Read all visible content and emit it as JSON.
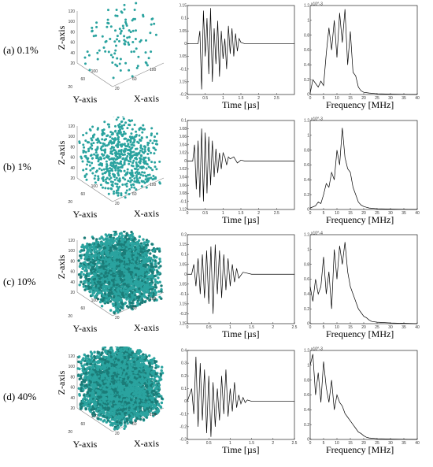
{
  "rows": [
    {
      "label": "(a) 0.1%",
      "density": 0.1
    },
    {
      "label": "(b) 1%",
      "density": 1
    },
    {
      "label": "(c) 10%",
      "density": 10
    },
    {
      "label": "(d) 40%",
      "density": 40
    }
  ],
  "cube_axes": {
    "x": "X-axis",
    "y": "Y-axis",
    "z": "Z-axis",
    "ticks": [
      "20",
      "40",
      "60",
      "80",
      "100",
      "120"
    ]
  },
  "colors": {
    "particle": "#2aa39f",
    "particle_dark": "#1b7c78",
    "line": "#000000"
  },
  "chart_data": [
    {
      "type": "line",
      "row": "(a) 0.1%",
      "xlabel": "Time [µs]",
      "xlim": [
        0,
        3
      ],
      "ylim": [
        -0.2,
        0.15
      ],
      "xticks": [
        "0",
        "0.5",
        "1",
        "1.5",
        "2",
        "2.5"
      ],
      "yticks": [
        "0.15",
        "0.1",
        "0.05",
        "0",
        "-0.05",
        "-0.1",
        "-0.15",
        "-0.2"
      ],
      "x": [
        0,
        0.3,
        0.35,
        0.4,
        0.45,
        0.5,
        0.55,
        0.6,
        0.65,
        0.7,
        0.75,
        0.8,
        0.85,
        0.9,
        0.95,
        1.0,
        1.05,
        1.1,
        1.15,
        1.2,
        1.25,
        1.3,
        1.35,
        1.4,
        1.45,
        1.5,
        1.6,
        3.0
      ],
      "y": [
        0,
        0,
        0.05,
        -0.18,
        0.13,
        -0.05,
        0.1,
        -0.12,
        0.14,
        -0.15,
        0.06,
        -0.08,
        0.09,
        -0.13,
        0.05,
        -0.06,
        0.02,
        -0.1,
        0.07,
        -0.04,
        0.06,
        -0.05,
        0.04,
        -0.03,
        0.02,
        0.005,
        0,
        0
      ]
    },
    {
      "type": "line",
      "row": "(a) 0.1%",
      "xlabel": "Frequency [MHz]",
      "exponent_label": "x10^-3",
      "xlim": [
        0,
        40
      ],
      "ylim": [
        0,
        1.2
      ],
      "xticks": [
        "0",
        "5",
        "10",
        "15",
        "20",
        "25",
        "30",
        "35",
        "40"
      ],
      "yticks": [
        "1.2",
        "1",
        "0.8",
        "0.6",
        "0.4",
        "0.2",
        "0"
      ],
      "x": [
        0,
        1,
        2,
        3,
        4,
        5,
        6,
        7,
        8,
        9,
        10,
        11,
        12,
        13,
        14,
        15,
        16,
        17,
        18,
        19,
        20,
        22,
        25,
        30,
        40
      ],
      "y": [
        0.02,
        0.2,
        0.15,
        0.1,
        0.18,
        0.12,
        0.55,
        0.9,
        0.6,
        1.0,
        0.5,
        1.1,
        0.7,
        1.15,
        0.4,
        0.85,
        0.3,
        0.25,
        0.1,
        0.05,
        0.03,
        0.02,
        0.01,
        0.005,
        0
      ]
    },
    {
      "type": "line",
      "row": "(b) 1%",
      "xlabel": "Time [µs]",
      "xlim": [
        0,
        3
      ],
      "ylim": [
        -0.12,
        0.1
      ],
      "xticks": [
        "0",
        "0.5",
        "1",
        "1.5",
        "2",
        "2.5"
      ],
      "yticks": [
        "0.1",
        "0.08",
        "0.06",
        "0.04",
        "0.02",
        "0",
        "-0.02",
        "-0.04",
        "-0.06",
        "-0.08",
        "-0.1",
        "-0.12"
      ],
      "x": [
        0,
        0.15,
        0.2,
        0.25,
        0.3,
        0.35,
        0.4,
        0.45,
        0.5,
        0.55,
        0.6,
        0.65,
        0.7,
        0.75,
        0.8,
        0.85,
        0.9,
        0.95,
        1.0,
        1.05,
        1.1,
        1.15,
        1.2,
        1.3,
        1.4,
        1.5,
        1.6,
        3.0
      ],
      "y": [
        0,
        0,
        0.04,
        -0.07,
        0.05,
        -0.09,
        0.08,
        -0.1,
        0.07,
        -0.08,
        0.06,
        -0.06,
        0.05,
        -0.04,
        0.03,
        -0.03,
        0.02,
        -0.02,
        0.02,
        0.01,
        -0.01,
        0.01,
        0.005,
        0.01,
        -0.005,
        0.002,
        0,
        0
      ]
    },
    {
      "type": "line",
      "row": "(b) 1%",
      "xlabel": "Frequency [MHz]",
      "exponent_label": "x10^-3",
      "xlim": [
        0,
        40
      ],
      "ylim": [
        0,
        1.2
      ],
      "xticks": [
        "0",
        "5",
        "10",
        "15",
        "20",
        "25",
        "30",
        "35",
        "40"
      ],
      "yticks": [
        "1.2",
        "1",
        "0.8",
        "0.6",
        "0.4",
        "0.2",
        "0"
      ],
      "x": [
        0,
        2,
        3,
        4,
        5,
        6,
        7,
        8,
        9,
        10,
        11,
        12,
        13,
        14,
        15,
        16,
        17,
        18,
        19,
        20,
        21,
        22,
        25,
        30,
        40
      ],
      "y": [
        0.02,
        0.05,
        0.1,
        0.08,
        0.2,
        0.35,
        0.3,
        0.5,
        0.4,
        0.8,
        0.6,
        1.1,
        0.7,
        0.55,
        0.5,
        0.3,
        0.2,
        0.1,
        0.06,
        0.04,
        0.03,
        0.02,
        0.01,
        0.005,
        0
      ]
    },
    {
      "type": "line",
      "row": "(c) 10%",
      "xlabel": "Time [µs]",
      "xlim": [
        0,
        2.5
      ],
      "ylim": [
        -0.25,
        0.2
      ],
      "xticks": [
        "0",
        "0.5",
        "1",
        "1.5",
        "2",
        "2.5"
      ],
      "yticks": [
        "0.2",
        "0.15",
        "0.1",
        "0.05",
        "0",
        "-0.05",
        "-0.1",
        "-0.15",
        "-0.2",
        "-0.25"
      ],
      "x": [
        0,
        0.1,
        0.15,
        0.2,
        0.25,
        0.3,
        0.35,
        0.4,
        0.45,
        0.5,
        0.55,
        0.6,
        0.65,
        0.7,
        0.75,
        0.8,
        0.85,
        0.9,
        0.95,
        1.0,
        1.05,
        1.1,
        1.15,
        1.2,
        1.3,
        1.4,
        1.5,
        2.5
      ],
      "y": [
        0,
        0,
        0.05,
        -0.06,
        0.08,
        -0.1,
        0.1,
        -0.12,
        0.12,
        -0.15,
        0.14,
        -0.2,
        0.15,
        -0.1,
        0.12,
        -0.12,
        0.1,
        -0.08,
        0.08,
        -0.06,
        0.05,
        -0.04,
        0.03,
        -0.02,
        0.01,
        0.005,
        0,
        0
      ]
    },
    {
      "type": "line",
      "row": "(c) 10%",
      "xlabel": "Frequency [MHz]",
      "exponent_label": "x10^-4",
      "xlim": [
        0,
        40
      ],
      "ylim": [
        0,
        1.2
      ],
      "xticks": [
        "0",
        "5",
        "10",
        "15",
        "20",
        "25",
        "30",
        "35",
        "40"
      ],
      "yticks": [
        "1.2",
        "1",
        "0.8",
        "0.6",
        "0.4",
        "0.2",
        "0"
      ],
      "x": [
        0,
        1,
        2,
        3,
        4,
        5,
        6,
        7,
        8,
        9,
        10,
        11,
        12,
        13,
        14,
        15,
        16,
        17,
        18,
        19,
        20,
        21,
        22,
        23,
        25,
        30,
        40
      ],
      "y": [
        0.5,
        0.3,
        0.6,
        0.4,
        0.5,
        0.9,
        0.4,
        0.7,
        0.2,
        1.0,
        0.6,
        1.05,
        0.8,
        1.1,
        0.7,
        0.5,
        0.4,
        0.3,
        0.2,
        0.15,
        0.1,
        0.08,
        0.05,
        0.03,
        0.02,
        0.01,
        0
      ]
    },
    {
      "type": "line",
      "row": "(d) 40%",
      "xlabel": "Time [µs]",
      "xlim": [
        0,
        2.5
      ],
      "ylim": [
        -0.3,
        0.4
      ],
      "xticks": [
        "0",
        "0.5",
        "1",
        "1.5",
        "2",
        "2.5"
      ],
      "yticks": [
        "0.4",
        "0.3",
        "0.2",
        "0.1",
        "0",
        "-0.1",
        "-0.2",
        "-0.3"
      ],
      "x": [
        0,
        0.1,
        0.15,
        0.2,
        0.25,
        0.3,
        0.35,
        0.4,
        0.45,
        0.5,
        0.55,
        0.6,
        0.65,
        0.7,
        0.75,
        0.8,
        0.85,
        0.9,
        0.95,
        1.0,
        1.05,
        1.1,
        1.15,
        1.2,
        1.25,
        1.3,
        1.35,
        1.4,
        1.5,
        2.5
      ],
      "y": [
        0,
        0.1,
        -0.1,
        0.35,
        -0.2,
        0.3,
        -0.15,
        0.25,
        -0.25,
        0.2,
        -0.28,
        0.15,
        -0.2,
        0.1,
        -0.15,
        0.2,
        -0.1,
        0.25,
        -0.12,
        0.1,
        -0.08,
        0.15,
        -0.05,
        0.05,
        -0.02,
        0.03,
        -0.01,
        0.01,
        0,
        0
      ]
    },
    {
      "type": "line",
      "row": "(d) 40%",
      "xlabel": "Frequency [MHz]",
      "exponent_label": "x10^-3",
      "xlim": [
        0,
        40
      ],
      "ylim": [
        0,
        1.2
      ],
      "xticks": [
        "0",
        "5",
        "10",
        "15",
        "20",
        "25",
        "30",
        "35",
        "40"
      ],
      "yticks": [
        "1.2",
        "1",
        "0.8",
        "0.6",
        "0.4",
        "0.2",
        "0"
      ],
      "x": [
        0,
        1,
        2,
        3,
        4,
        5,
        6,
        7,
        8,
        9,
        10,
        11,
        12,
        13,
        14,
        15,
        16,
        17,
        18,
        19,
        20,
        21,
        22,
        25,
        30,
        40
      ],
      "y": [
        1.0,
        1.15,
        0.6,
        0.9,
        0.5,
        1.05,
        0.7,
        0.5,
        0.8,
        0.4,
        0.6,
        0.5,
        0.45,
        0.35,
        0.3,
        0.25,
        0.2,
        0.15,
        0.1,
        0.08,
        0.05,
        0.03,
        0.02,
        0.01,
        0.005,
        0
      ]
    }
  ]
}
